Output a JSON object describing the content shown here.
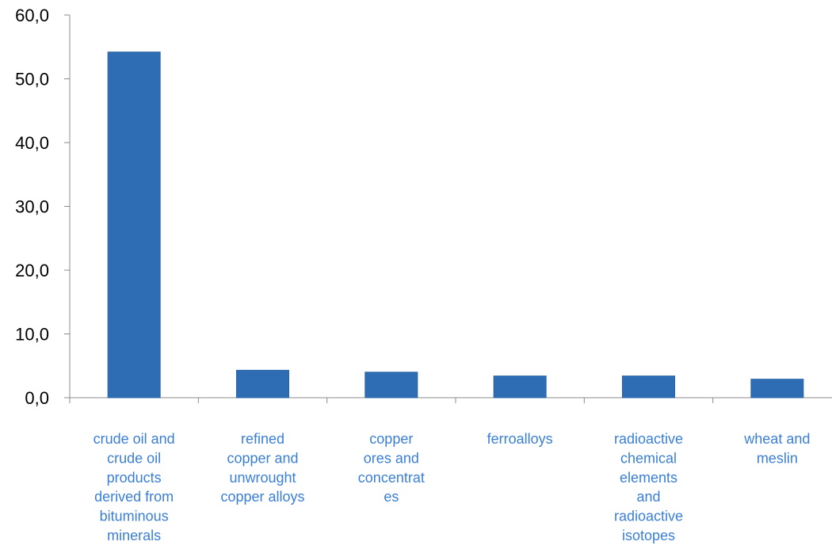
{
  "chart_data": {
    "type": "bar",
    "categories": [
      [
        "crude oil and",
        "crude oil",
        "products",
        "derived from",
        "bituminous",
        "minerals"
      ],
      [
        "refined",
        "copper and",
        "unwrought",
        "copper alloys"
      ],
      [
        "copper",
        "ores and",
        "concentrat",
        "es"
      ],
      [
        "ferroalloys"
      ],
      [
        "radioactive",
        "chemical",
        "elements",
        "and",
        "radioactive",
        "isotopes"
      ],
      [
        "wheat and",
        "meslin"
      ]
    ],
    "values": [
      54.2,
      4.3,
      4.0,
      3.4,
      3.4,
      2.9
    ],
    "ylim": [
      0,
      60
    ],
    "yticks": [
      "0,0",
      "10,0",
      "20,0",
      "30,0",
      "40,0",
      "50,0",
      "60,0"
    ],
    "title": "",
    "xlabel": "",
    "ylabel": "",
    "grid": false,
    "colors": {
      "bar": "#2e6db4",
      "bar_edge": "#2a64a6",
      "category_label": "#3a7fd5",
      "axis": "#8c8c8c",
      "tick_label": "#000000"
    }
  }
}
